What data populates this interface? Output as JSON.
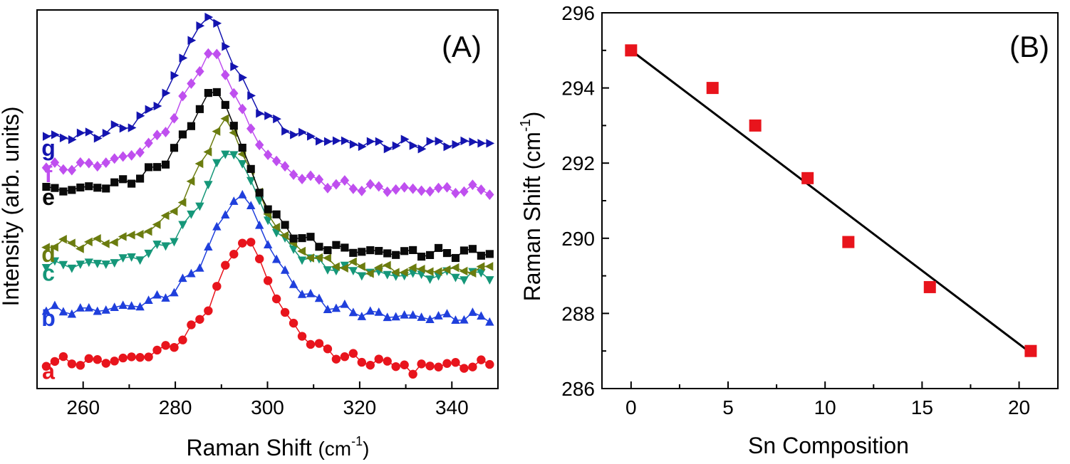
{
  "chart_data": [
    {
      "panel": "(A)",
      "type": "line",
      "xlabel": "Raman Shift",
      "xlabel_unit": "(cm",
      "xlabel_unit_sup": "-1",
      "xlabel_unit_close": ")",
      "ylabel": "Intensity (arb. units)",
      "xlim": [
        250,
        350
      ],
      "ylim": [
        0,
        100
      ],
      "x_ticks": [
        260,
        280,
        300,
        320,
        340
      ],
      "y_ticks_labeled": false,
      "series": [
        {
          "name": "a",
          "label": "a",
          "color": "#e8141c",
          "marker": "circle",
          "baseline": 4,
          "peak_center": 295,
          "peak_height": 35,
          "peak_width": 8,
          "right_offset": 0,
          "tail": 4,
          "dip_at": 331
        },
        {
          "name": "b",
          "label": "b",
          "color": "#1f3fdc",
          "marker": "triangle-up",
          "baseline": 18,
          "peak_center": 294,
          "peak_height": 33,
          "peak_width": 8,
          "right_offset": -1,
          "tail": 3,
          "dip_at": null
        },
        {
          "name": "c",
          "label": "c",
          "color": "#159779",
          "marker": "triangle-down",
          "baseline": 30,
          "peak_center": 292,
          "peak_height": 33,
          "peak_width": 8,
          "right_offset": -2,
          "tail": 3,
          "dip_at": null
        },
        {
          "name": "d",
          "label": "d",
          "color": "#6b7c0f",
          "marker": "triangle-left",
          "baseline": 35,
          "peak_center": 291,
          "peak_height": 36,
          "peak_width": 8,
          "right_offset": -6,
          "tail": 4,
          "dip_at": null
        },
        {
          "name": "e",
          "label": "e",
          "color": "#0a0a0a",
          "marker": "square",
          "baseline": 50,
          "peak_center": 289,
          "peak_height": 31,
          "peak_width": 8,
          "right_offset": -16,
          "tail": 3,
          "dip_at": null
        },
        {
          "name": "f",
          "label": "f",
          "color": "#bf4fef",
          "marker": "diamond",
          "baseline": 56,
          "peak_center": 288,
          "peak_height": 33,
          "peak_width": 8,
          "right_offset": -5,
          "tail": 2,
          "dip_at": null
        },
        {
          "name": "g",
          "label": "g",
          "color": "#1414b0",
          "marker": "triangle-right",
          "baseline": 63,
          "peak_center": 287,
          "peak_height": 35,
          "peak_width": 8,
          "right_offset": -1,
          "tail": 5,
          "dip_at": null
        }
      ]
    },
    {
      "panel": "(B)",
      "type": "scatter",
      "xlabel": "Sn Composition",
      "ylabel": "Raman Shift",
      "ylabel_unit": "(cm",
      "ylabel_unit_sup": "-1",
      "ylabel_unit_close": ")",
      "xlim": [
        -1.5,
        22
      ],
      "ylim": [
        286,
        296
      ],
      "x_ticks": [
        0,
        5,
        10,
        15,
        20
      ],
      "y_ticks": [
        286,
        288,
        290,
        292,
        294,
        296
      ],
      "points": {
        "x": [
          0,
          4.2,
          6.4,
          9.1,
          11.2,
          15.4,
          20.6
        ],
        "y": [
          295.0,
          294.0,
          293.0,
          291.6,
          289.9,
          288.7,
          287.0
        ],
        "color": "#e8141c",
        "marker": "square"
      },
      "fit_line": {
        "x": [
          0,
          20.6
        ],
        "y": [
          295.0,
          286.95
        ],
        "color": "#000000"
      }
    }
  ]
}
